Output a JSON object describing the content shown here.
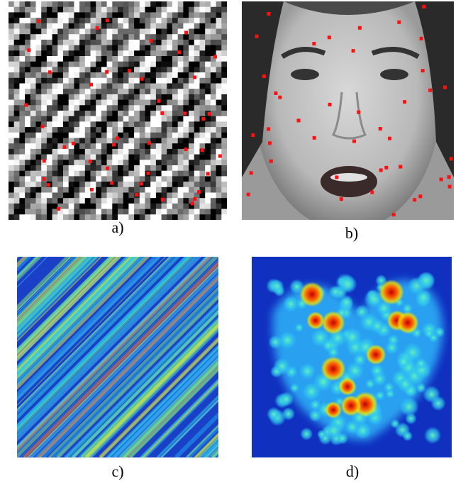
{
  "panels": [
    {
      "caption": "a)"
    },
    {
      "caption": "b)"
    },
    {
      "caption": "c)"
    },
    {
      "caption": "d)"
    }
  ]
}
